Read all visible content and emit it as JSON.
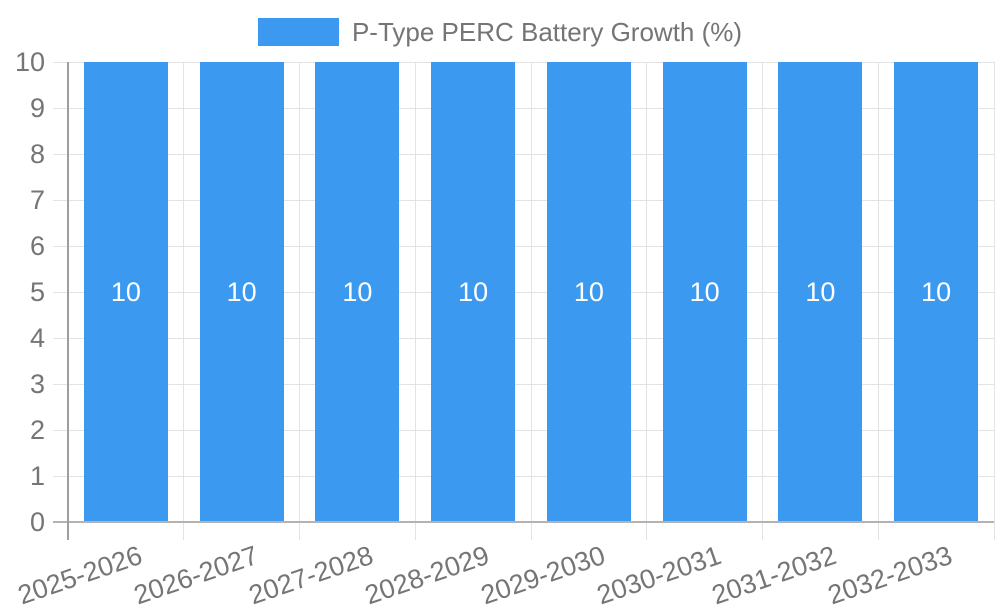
{
  "title": "P-Type PERC Battery Growth (%)",
  "legend": {
    "position": "top",
    "items": [
      {
        "label": "P-Type PERC Battery Growth (%)",
        "color": "#3B99F0"
      }
    ]
  },
  "chart_data": {
    "type": "bar",
    "title": "P-Type PERC Battery Growth (%)",
    "categories": [
      "2025-2026",
      "2026-2027",
      "2027-2028",
      "2028-2029",
      "2029-2030",
      "2030-2031",
      "2031-2032",
      "2032-2033"
    ],
    "values": [
      10,
      10,
      10,
      10,
      10,
      10,
      10,
      10
    ],
    "value_labels": [
      "10",
      "10",
      "10",
      "10",
      "10",
      "10",
      "10",
      "10"
    ],
    "xlabel": "",
    "ylabel": "",
    "ylim": [
      0,
      10
    ],
    "y_ticks": [
      0,
      1,
      2,
      3,
      4,
      5,
      6,
      7,
      8,
      9,
      10
    ],
    "grid": true,
    "legend_position": "top",
    "x_label_rotation_deg": -19,
    "colors": {
      "bar": "#3B99F0",
      "bar_value_label": "#FFFFFF",
      "axis_text": "#757575",
      "legend_text": "#757575",
      "gridline": "#E3E3E3",
      "axis_line": "#9E9E9E",
      "baseline": "#B3B3B3"
    }
  }
}
